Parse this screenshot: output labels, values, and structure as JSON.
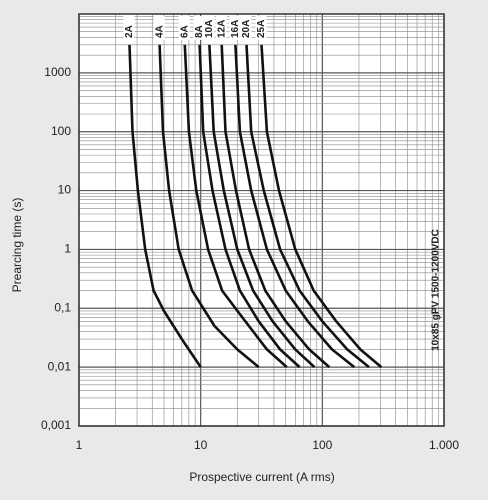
{
  "chart_data": {
    "type": "line",
    "log_x": true,
    "log_y": true,
    "grid": true,
    "minor_grid": true,
    "xlabel": "Prospective current (A rms)",
    "ylabel": "Prearcing time (s)",
    "annotation": "10x85 gPV 1500-1200VDC",
    "xlim": [
      1,
      1000
    ],
    "ylim": [
      0.001,
      10000
    ],
    "xticks": [
      1,
      10,
      100,
      {
        "value": 1000,
        "label": "1.000"
      }
    ],
    "yticks": [
      {
        "value": 0.001,
        "label": "0,001"
      },
      {
        "value": 0.01,
        "label": "0,01"
      },
      {
        "value": 0.1,
        "label": "0,1"
      },
      1,
      10,
      100,
      1000
    ],
    "series": [
      {
        "name": "2A",
        "color": "#111111",
        "x": [
          2.6,
          2.75,
          3.05,
          3.5,
          4.1,
          5,
          7,
          10
        ],
        "values": [
          3000,
          100,
          10,
          1,
          0.2,
          0.09,
          0.03,
          0.01
        ]
      },
      {
        "name": "4A",
        "color": "#111111",
        "x": [
          4.6,
          4.9,
          5.5,
          6.6,
          8.5,
          13,
          20,
          30
        ],
        "values": [
          3000,
          100,
          10,
          1,
          0.2,
          0.05,
          0.02,
          0.01
        ]
      },
      {
        "name": "6A",
        "color": "#111111",
        "x": [
          7.4,
          8,
          9.2,
          11.5,
          15,
          22,
          35,
          51
        ],
        "values": [
          3000,
          100,
          10,
          1,
          0.2,
          0.07,
          0.02,
          0.01
        ]
      },
      {
        "name": "8A",
        "color": "#111111",
        "x": [
          9.8,
          10.5,
          12.5,
          16,
          21,
          30,
          45,
          65
        ],
        "values": [
          3000,
          100,
          10,
          1,
          0.2,
          0.06,
          0.02,
          0.01
        ]
      },
      {
        "name": "10A",
        "color": "#111111",
        "x": [
          11.8,
          12.8,
          15.5,
          20,
          27,
          39,
          60,
          86
        ],
        "values": [
          3000,
          100,
          10,
          1,
          0.2,
          0.06,
          0.02,
          0.01
        ]
      },
      {
        "name": "12A",
        "color": "#111111",
        "x": [
          14.9,
          16,
          19.5,
          25,
          34,
          50,
          78,
          114
        ],
        "values": [
          3000,
          100,
          10,
          1,
          0.2,
          0.06,
          0.02,
          0.01
        ]
      },
      {
        "name": "16A",
        "color": "#111111",
        "x": [
          19.3,
          21,
          26,
          35,
          50,
          76,
          120,
          183
        ],
        "values": [
          3000,
          100,
          10,
          1,
          0.2,
          0.06,
          0.02,
          0.01
        ]
      },
      {
        "name": "20A",
        "color": "#111111",
        "x": [
          23.8,
          26,
          33,
          45,
          65,
          100,
          160,
          242
        ],
        "values": [
          3000,
          100,
          10,
          1,
          0.2,
          0.06,
          0.02,
          0.01
        ]
      },
      {
        "name": "25A",
        "color": "#111111",
        "x": [
          31.6,
          35,
          44,
          60,
          85,
          130,
          205,
          305
        ],
        "values": [
          3000,
          100,
          10,
          1,
          0.2,
          0.06,
          0.02,
          0.01
        ]
      }
    ]
  }
}
